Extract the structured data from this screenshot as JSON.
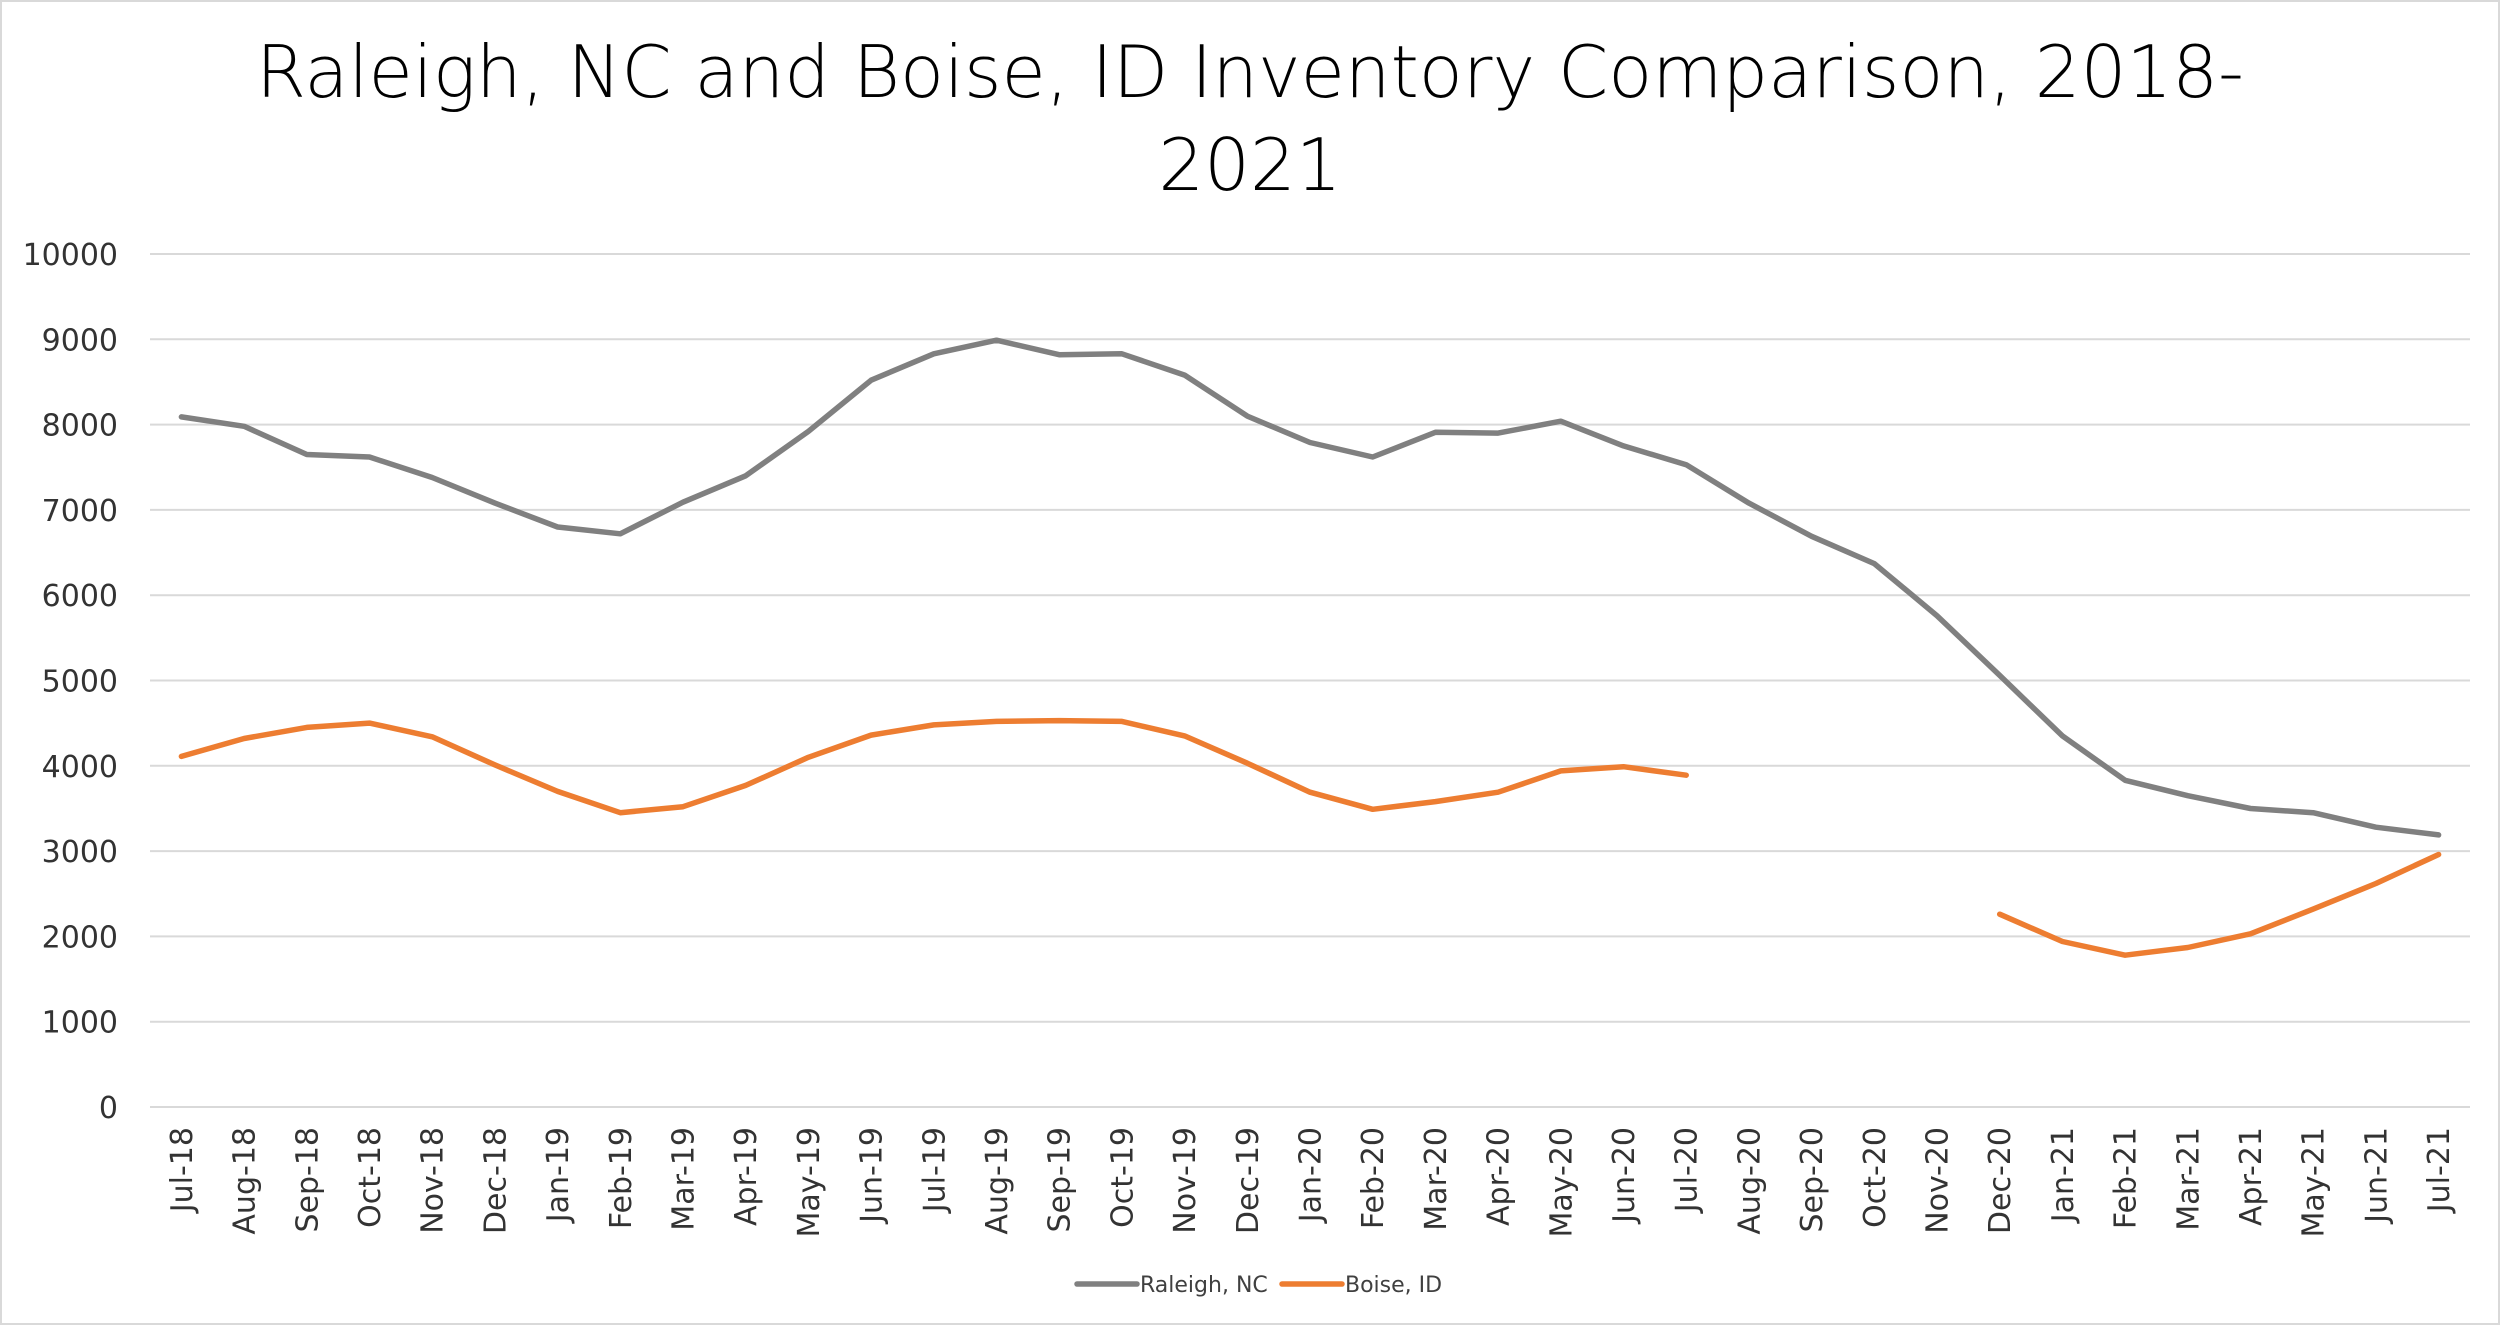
{
  "chart_data": {
    "type": "line",
    "title_lines": [
      "Raleigh, NC and Boise, ID Inventory Comparison, 2018-",
      "2021"
    ],
    "xlabel": "",
    "ylabel": "",
    "ylim": [
      0,
      10000
    ],
    "y_ticks": [
      0,
      1000,
      2000,
      3000,
      4000,
      5000,
      6000,
      7000,
      8000,
      9000,
      10000
    ],
    "grid": true,
    "legend_position": "bottom",
    "categories": [
      "Jul-18",
      "Aug-18",
      "Sep-18",
      "Oct-18",
      "Nov-18",
      "Dec-18",
      "Jan-19",
      "Feb-19",
      "Mar-19",
      "Apr-19",
      "May-19",
      "Jun-19",
      "Jul-19",
      "Aug-19",
      "Sep-19",
      "Oct-19",
      "Nov-19",
      "Dec-19",
      "Jan-20",
      "Feb-20",
      "Mar-20",
      "Apr-20",
      "May-20",
      "Jun-20",
      "Jul-20",
      "Aug-20",
      "Sep-20",
      "Oct-20",
      "Nov-20",
      "Dec-20",
      "Jan-21",
      "Feb-21",
      "Mar-21",
      "Apr-21",
      "May-21",
      "Jun-21",
      "Jul-21"
    ],
    "series": [
      {
        "name": "Raleigh, NC",
        "color": "#808080",
        "values": [
          8090,
          7980,
          7650,
          7620,
          7380,
          7080,
          6800,
          6720,
          7090,
          7400,
          7920,
          8520,
          8830,
          8990,
          8820,
          8830,
          8580,
          8100,
          7790,
          7620,
          7910,
          7900,
          8040,
          7750,
          7530,
          7080,
          6690,
          6370,
          5760,
          5060,
          4350,
          3830,
          3650,
          3500,
          3450,
          3280,
          3190
        ]
      },
      {
        "name": "Boise, ID",
        "color": "#ed7d31",
        "values": [
          4110,
          4320,
          4450,
          4500,
          4340,
          4010,
          3700,
          3450,
          3520,
          3770,
          4100,
          4360,
          4480,
          4520,
          4530,
          4520,
          4350,
          4030,
          3690,
          3490,
          3580,
          3690,
          3940,
          3990,
          3890,
          null,
          null,
          null,
          null,
          2260,
          1940,
          1780,
          1870,
          2030,
          2320,
          2620,
          2960
        ]
      }
    ]
  }
}
